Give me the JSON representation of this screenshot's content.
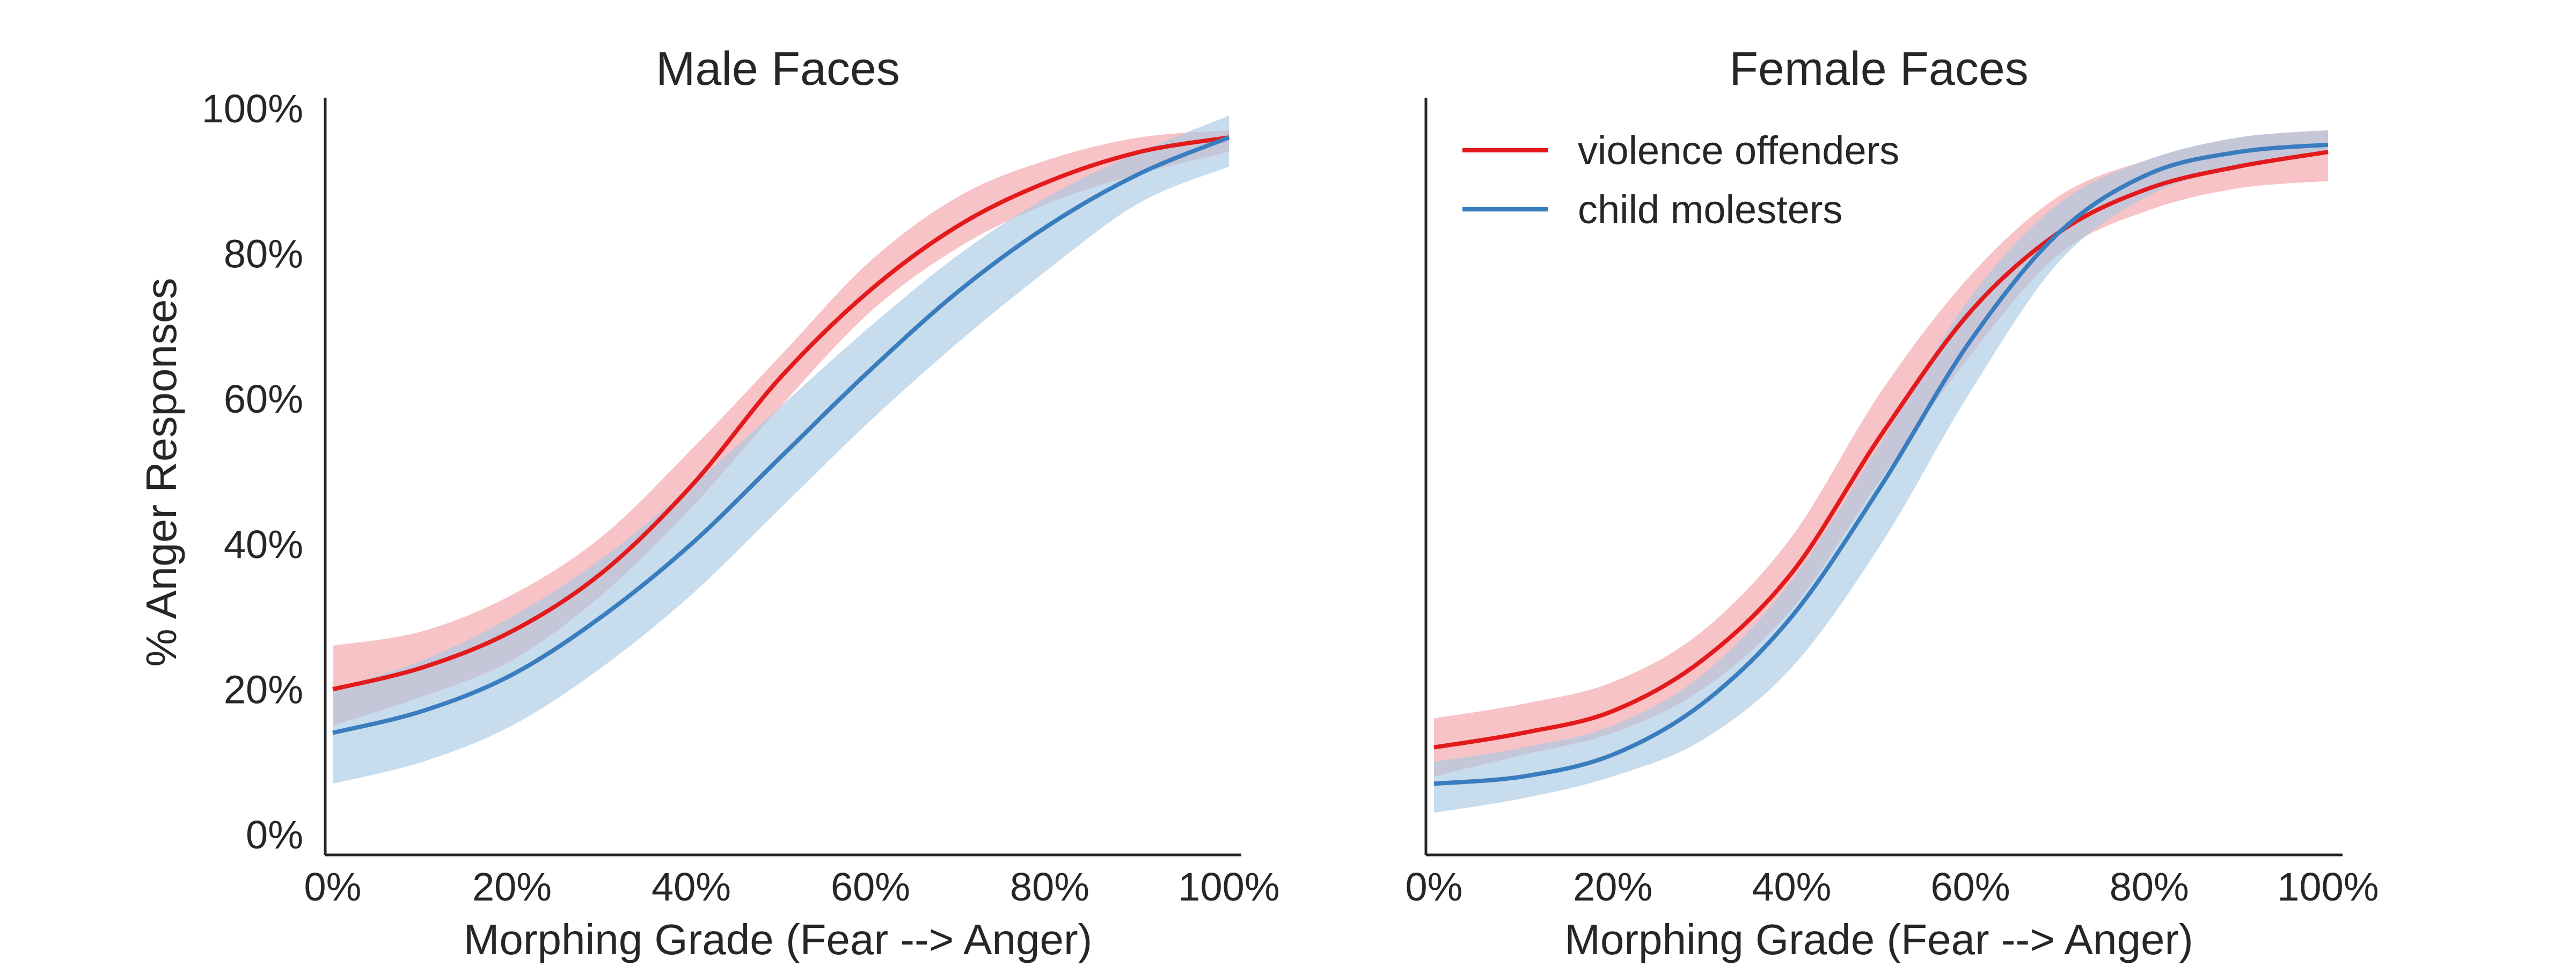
{
  "chart_data": [
    {
      "type": "line",
      "title": "Male Faces",
      "xlabel": "Morphing Grade (Fear --> Anger)",
      "ylabel": "% Anger Responses",
      "xlim": [
        0,
        100
      ],
      "ylim": [
        0,
        100
      ],
      "xticks": [
        "0%",
        "20%",
        "40%",
        "60%",
        "80%",
        "100%"
      ],
      "yticks": [
        "0%",
        "20%",
        "40%",
        "60%",
        "80%",
        "100%"
      ],
      "show_yticks": true,
      "grid": false,
      "x": [
        0,
        10,
        20,
        30,
        40,
        50,
        60,
        70,
        80,
        90,
        100
      ],
      "series": [
        {
          "name": "violence offenders",
          "color": "#e31a1c",
          "band_color": "#f4a3a8",
          "values": [
            20,
            23,
            28,
            36,
            48,
            63,
            75,
            84,
            90,
            94,
            96
          ],
          "lower": [
            15,
            19,
            24,
            33,
            45,
            59,
            72,
            81,
            87,
            91,
            94
          ],
          "upper": [
            26,
            28,
            33,
            41,
            53,
            66,
            79,
            88,
            93,
            96,
            97
          ]
        },
        {
          "name": "child molesters",
          "color": "#3a7dbf",
          "band_color": "#a9c9e3",
          "values": [
            14,
            17,
            22,
            30,
            40,
            52,
            64,
            75,
            84,
            91,
            96
          ],
          "lower": [
            7,
            10,
            15,
            23,
            33,
            45,
            57,
            68,
            78,
            87,
            92
          ],
          "upper": [
            20,
            24,
            30,
            38,
            48,
            59,
            70,
            80,
            88,
            94,
            99
          ]
        }
      ]
    },
    {
      "type": "line",
      "title": "Female Faces",
      "xlabel": "Morphing Grade (Fear --> Anger)",
      "ylabel": "",
      "xlim": [
        0,
        100
      ],
      "ylim": [
        0,
        100
      ],
      "xticks": [
        "0%",
        "20%",
        "40%",
        "60%",
        "80%",
        "100%"
      ],
      "yticks": [],
      "show_yticks": false,
      "grid": false,
      "legend": {
        "placement": "top-left",
        "entries": [
          "violence offenders",
          "child molesters"
        ]
      },
      "x": [
        0,
        10,
        20,
        30,
        40,
        50,
        60,
        70,
        80,
        90,
        100
      ],
      "series": [
        {
          "name": "violence offenders",
          "color": "#e31a1c",
          "band_color": "#f4a3a8",
          "values": [
            12,
            14,
            17,
            24,
            36,
            55,
            72,
            83,
            89,
            92,
            94
          ],
          "lower": [
            8,
            11,
            14,
            20,
            31,
            49,
            66,
            80,
            86,
            89,
            90
          ],
          "upper": [
            16,
            18,
            21,
            28,
            41,
            61,
            77,
            88,
            93,
            96,
            97
          ]
        },
        {
          "name": "child molesters",
          "color": "#3a7dbf",
          "band_color": "#a9c9e3",
          "values": [
            7,
            8,
            11,
            18,
            30,
            48,
            68,
            83,
            91,
            94,
            95
          ],
          "lower": [
            3,
            5,
            8,
            13,
            23,
            40,
            61,
            79,
            88,
            92,
            94
          ],
          "upper": [
            10,
            12,
            15,
            22,
            35,
            54,
            74,
            87,
            93,
            96,
            97
          ]
        }
      ]
    }
  ]
}
